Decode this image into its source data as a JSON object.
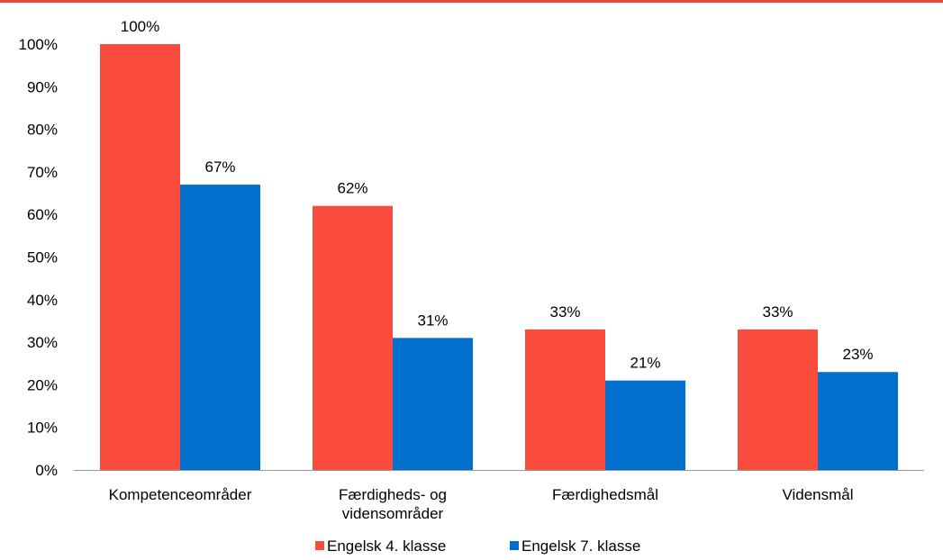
{
  "colors": {
    "top_rule": "#e8463a"
  },
  "chart_data": {
    "type": "bar",
    "categories": [
      [
        "Kompetenceområder"
      ],
      [
        "Færdigheds- og",
        "vidensområder"
      ],
      [
        "Færdighedsmål"
      ],
      [
        "Vidensmål"
      ]
    ],
    "series": [
      {
        "name": "Engelsk 4. klasse",
        "color": "#f94c3c",
        "values": [
          100,
          62,
          33,
          33
        ],
        "labels": [
          "100%",
          "62%",
          "33%",
          "33%"
        ]
      },
      {
        "name": "Engelsk 7. klasse",
        "color": "#0070cc",
        "values": [
          67,
          31,
          21,
          23
        ],
        "labels": [
          "67%",
          "31%",
          "21%",
          "23%"
        ]
      }
    ],
    "ylim": [
      0,
      100
    ],
    "yticks": [
      "0%",
      "10%",
      "20%",
      "30%",
      "40%",
      "50%",
      "60%",
      "70%",
      "80%",
      "90%",
      "100%"
    ],
    "grid": false,
    "legend": "bottom-center",
    "axis_color": "#999999"
  }
}
